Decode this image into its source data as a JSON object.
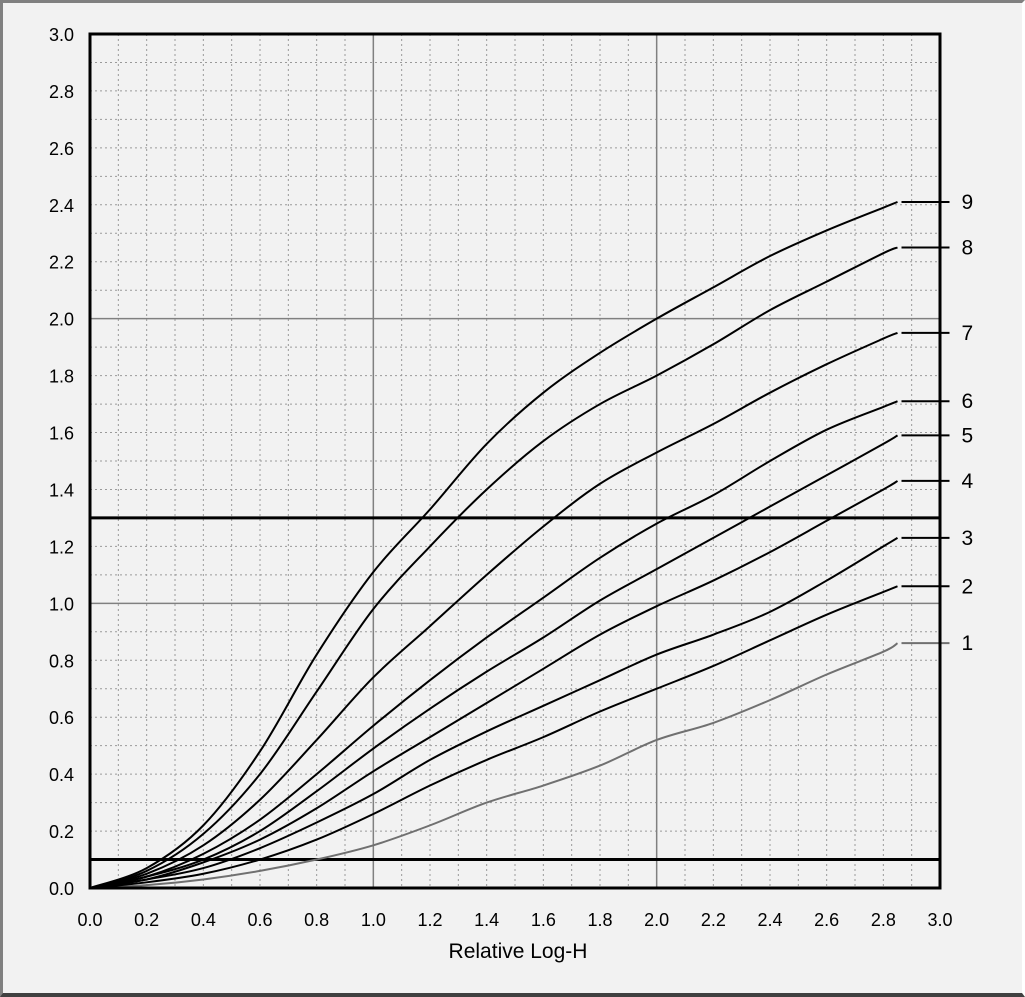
{
  "chart_data": {
    "type": "line",
    "title": "",
    "xlabel": "Relative Log-H",
    "ylabel": "",
    "xlim": [
      0,
      3
    ],
    "ylim": [
      0,
      3
    ],
    "grid": true,
    "x_ticks": [
      "0.0",
      "0.2",
      "0.4",
      "0.6",
      "0.8",
      "1.0",
      "1.2",
      "1.4",
      "1.6",
      "1.8",
      "2.0",
      "2.2",
      "2.4",
      "2.6",
      "2.8",
      "3.0"
    ],
    "y_ticks": [
      "0.0",
      "0.2",
      "0.4",
      "0.6",
      "0.8",
      "1.0",
      "1.2",
      "1.4",
      "1.6",
      "1.8",
      "2.0",
      "2.2",
      "2.4",
      "2.6",
      "2.8",
      "3.0"
    ],
    "reference_lines_y": [
      0.1,
      1.3
    ],
    "x": [
      0.0,
      0.2,
      0.4,
      0.6,
      0.8,
      1.0,
      1.2,
      1.4,
      1.6,
      1.8,
      2.0,
      2.2,
      2.4,
      2.6,
      2.8,
      2.85
    ],
    "series": [
      {
        "name": "1",
        "color": "#707070",
        "values": [
          0.0,
          0.01,
          0.03,
          0.06,
          0.1,
          0.15,
          0.22,
          0.3,
          0.36,
          0.43,
          0.52,
          0.58,
          0.66,
          0.75,
          0.83,
          0.86
        ]
      },
      {
        "name": "2",
        "color": "#000000",
        "values": [
          0.0,
          0.02,
          0.05,
          0.1,
          0.17,
          0.26,
          0.36,
          0.45,
          0.53,
          0.62,
          0.7,
          0.78,
          0.87,
          0.96,
          1.04,
          1.06
        ]
      },
      {
        "name": "3",
        "color": "#000000",
        "values": [
          0.0,
          0.03,
          0.07,
          0.14,
          0.23,
          0.33,
          0.45,
          0.55,
          0.64,
          0.73,
          0.82,
          0.89,
          0.97,
          1.08,
          1.2,
          1.23
        ]
      },
      {
        "name": "4",
        "color": "#000000",
        "values": [
          0.0,
          0.03,
          0.09,
          0.17,
          0.28,
          0.41,
          0.53,
          0.65,
          0.77,
          0.89,
          0.99,
          1.08,
          1.18,
          1.29,
          1.4,
          1.43
        ]
      },
      {
        "name": "5",
        "color": "#000000",
        "values": [
          0.0,
          0.04,
          0.1,
          0.2,
          0.34,
          0.49,
          0.63,
          0.76,
          0.88,
          1.01,
          1.12,
          1.23,
          1.34,
          1.45,
          1.56,
          1.59
        ]
      },
      {
        "name": "6",
        "color": "#000000",
        "values": [
          0.0,
          0.04,
          0.12,
          0.24,
          0.4,
          0.57,
          0.73,
          0.88,
          1.02,
          1.16,
          1.28,
          1.38,
          1.5,
          1.61,
          1.69,
          1.71
        ]
      },
      {
        "name": "7",
        "color": "#000000",
        "values": [
          0.0,
          0.05,
          0.15,
          0.31,
          0.52,
          0.74,
          0.92,
          1.1,
          1.27,
          1.42,
          1.53,
          1.63,
          1.74,
          1.84,
          1.93,
          1.95
        ]
      },
      {
        "name": "8",
        "color": "#000000",
        "values": [
          0.0,
          0.06,
          0.19,
          0.4,
          0.69,
          0.98,
          1.2,
          1.4,
          1.57,
          1.7,
          1.8,
          1.91,
          2.03,
          2.13,
          2.23,
          2.25
        ]
      },
      {
        "name": "9",
        "color": "#000000",
        "values": [
          0.0,
          0.07,
          0.22,
          0.48,
          0.82,
          1.11,
          1.33,
          1.56,
          1.74,
          1.88,
          2.0,
          2.11,
          2.22,
          2.31,
          2.39,
          2.41
        ]
      }
    ]
  }
}
